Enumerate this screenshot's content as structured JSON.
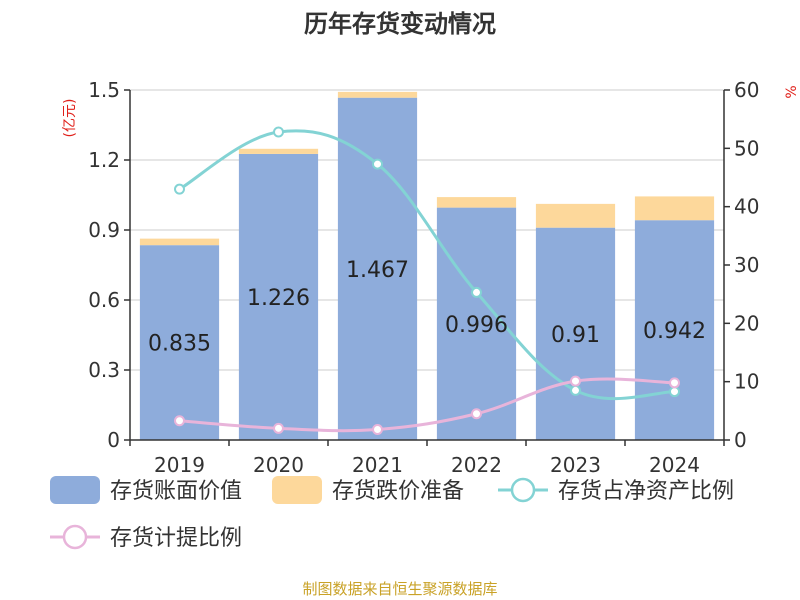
{
  "chart_data": {
    "type": "bar",
    "title": "历年存货变动情况",
    "categories": [
      "2019",
      "2020",
      "2021",
      "2022",
      "2023",
      "2024"
    ],
    "y_left_unit": "(亿元)",
    "y_right_unit": "%",
    "y_left_range": [
      0,
      1.5
    ],
    "y_left_ticks": [
      "0",
      "0.3",
      "0.6",
      "0.9",
      "1.2",
      "1.5"
    ],
    "y_right_range": [
      0,
      60
    ],
    "y_right_ticks": [
      "0",
      "10",
      "20",
      "30",
      "40",
      "50",
      "60"
    ],
    "series": [
      {
        "name": "存货账面价值",
        "type": "bar",
        "stack": "inv",
        "axis": "left",
        "color": "#8eacdb",
        "values": [
          0.835,
          1.226,
          1.467,
          0.996,
          0.91,
          0.942
        ],
        "labels": [
          "0.835",
          "1.226",
          "1.467",
          "0.996",
          "0.91",
          "0.942"
        ]
      },
      {
        "name": "存货跌价准备",
        "type": "bar",
        "stack": "inv",
        "axis": "left",
        "color": "#fdd89b",
        "values": [
          0.028,
          0.022,
          0.025,
          0.045,
          0.102,
          0.102
        ]
      },
      {
        "name": "存货占净资产比例",
        "type": "line",
        "axis": "right",
        "color": "#83d3d4",
        "values": [
          43.0,
          52.8,
          47.3,
          25.3,
          8.5,
          8.3
        ]
      },
      {
        "name": "存货计提比例",
        "type": "line",
        "axis": "right",
        "color": "#e8b4da",
        "values": [
          3.3,
          2.0,
          1.8,
          4.5,
          10.1,
          9.8
        ]
      }
    ],
    "grid": true,
    "legend_position": "bottom"
  },
  "footer": {
    "source": "制图数据来自恒生聚源数据库"
  }
}
